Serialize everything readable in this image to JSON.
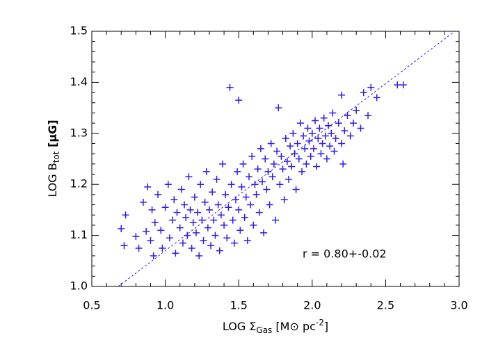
{
  "chart_data": {
    "type": "scatter",
    "color": "#2a1cf0",
    "xlim": [
      0.5,
      3.0
    ],
    "ylim": [
      1.0,
      1.5
    ],
    "xticks": [
      0.5,
      {
        "value": 1,
        "label": "1.0"
      },
      1.5,
      {
        "value": 2,
        "label": "2.0"
      },
      2.5,
      {
        "value": 3,
        "label": "3.0"
      }
    ],
    "yticks": [
      {
        "value": 1,
        "label": "1.0"
      },
      1.1,
      1.2,
      1.3,
      1.4,
      1.5
    ],
    "xminor": 5,
    "yminor": 5,
    "xlabel": {
      "main": "LOG Σ",
      "sub": "Gas",
      "unit": " [M⊙ pc",
      "sup": "-2",
      "end": "]"
    },
    "ylabel": {
      "main": "LOG B",
      "sub": "tot",
      "unit": " [μG]"
    },
    "annotation": "r = 0.80+-0.02",
    "fit_line": {
      "x": [
        0.68,
        2.97
      ],
      "y": [
        1.0,
        1.5
      ]
    },
    "x": [
      0.7,
      0.72,
      0.73,
      0.8,
      0.82,
      0.85,
      0.87,
      0.88,
      0.9,
      0.91,
      0.92,
      0.93,
      0.95,
      0.97,
      0.98,
      1.0,
      1.02,
      1.03,
      1.05,
      1.06,
      1.07,
      1.08,
      1.1,
      1.11,
      1.12,
      1.13,
      1.14,
      1.15,
      1.16,
      1.17,
      1.18,
      1.19,
      1.2,
      1.21,
      1.22,
      1.23,
      1.24,
      1.25,
      1.26,
      1.27,
      1.28,
      1.29,
      1.3,
      1.31,
      1.32,
      1.33,
      1.34,
      1.35,
      1.36,
      1.37,
      1.38,
      1.39,
      1.4,
      1.41,
      1.42,
      1.43,
      1.44,
      1.45,
      1.46,
      1.47,
      1.48,
      1.49,
      1.5,
      1.5,
      1.51,
      1.52,
      1.53,
      1.54,
      1.55,
      1.56,
      1.57,
      1.58,
      1.59,
      1.6,
      1.61,
      1.62,
      1.63,
      1.64,
      1.65,
      1.66,
      1.67,
      1.68,
      1.69,
      1.7,
      1.71,
      1.72,
      1.73,
      1.74,
      1.75,
      1.76,
      1.77,
      1.78,
      1.79,
      1.8,
      1.81,
      1.82,
      1.83,
      1.84,
      1.85,
      1.86,
      1.87,
      1.88,
      1.89,
      1.9,
      1.91,
      1.92,
      1.93,
      1.94,
      1.95,
      1.96,
      1.97,
      1.98,
      1.99,
      2.0,
      2.01,
      2.02,
      2.03,
      2.04,
      2.05,
      2.06,
      2.07,
      2.08,
      2.09,
      2.1,
      2.11,
      2.12,
      2.13,
      2.14,
      2.15,
      2.16,
      2.18,
      2.2,
      2.2,
      2.21,
      2.22,
      2.24,
      2.26,
      2.28,
      2.3,
      2.33,
      2.35,
      2.38,
      2.4,
      2.44,
      2.58,
      2.62
    ],
    "y": [
      1.113,
      1.08,
      1.14,
      1.098,
      1.075,
      1.165,
      1.108,
      1.195,
      1.09,
      1.15,
      1.06,
      1.125,
      1.18,
      1.11,
      1.075,
      1.155,
      1.2,
      1.095,
      1.13,
      1.17,
      1.065,
      1.145,
      1.115,
      1.19,
      1.085,
      1.16,
      1.135,
      1.1,
      1.215,
      1.15,
      1.075,
      1.125,
      1.175,
      1.105,
      1.145,
      1.06,
      1.2,
      1.13,
      1.09,
      1.165,
      1.225,
      1.115,
      1.15,
      1.08,
      1.185,
      1.13,
      1.1,
      1.21,
      1.16,
      1.07,
      1.14,
      1.24,
      1.12,
      1.18,
      1.095,
      1.155,
      1.39,
      1.2,
      1.13,
      1.085,
      1.17,
      1.225,
      1.365,
      1.15,
      1.11,
      1.195,
      1.24,
      1.135,
      1.175,
      1.09,
      1.215,
      1.16,
      1.255,
      1.12,
      1.2,
      1.18,
      1.23,
      1.145,
      1.27,
      1.205,
      1.105,
      1.25,
      1.19,
      1.225,
      1.16,
      1.28,
      1.215,
      1.24,
      1.13,
      1.265,
      1.35,
      1.2,
      1.255,
      1.23,
      1.17,
      1.29,
      1.245,
      1.21,
      1.275,
      1.235,
      1.3,
      1.26,
      1.19,
      1.28,
      1.25,
      1.32,
      1.225,
      1.295,
      1.27,
      1.24,
      1.31,
      1.285,
      1.255,
      1.3,
      1.27,
      1.325,
      1.235,
      1.29,
      1.31,
      1.26,
      1.28,
      1.33,
      1.295,
      1.25,
      1.315,
      1.275,
      1.3,
      1.34,
      1.265,
      1.29,
      1.32,
      1.375,
      1.28,
      1.24,
      1.305,
      1.335,
      1.295,
      1.32,
      1.345,
      1.31,
      1.38,
      1.335,
      1.39,
      1.37,
      1.395,
      1.395
    ]
  }
}
